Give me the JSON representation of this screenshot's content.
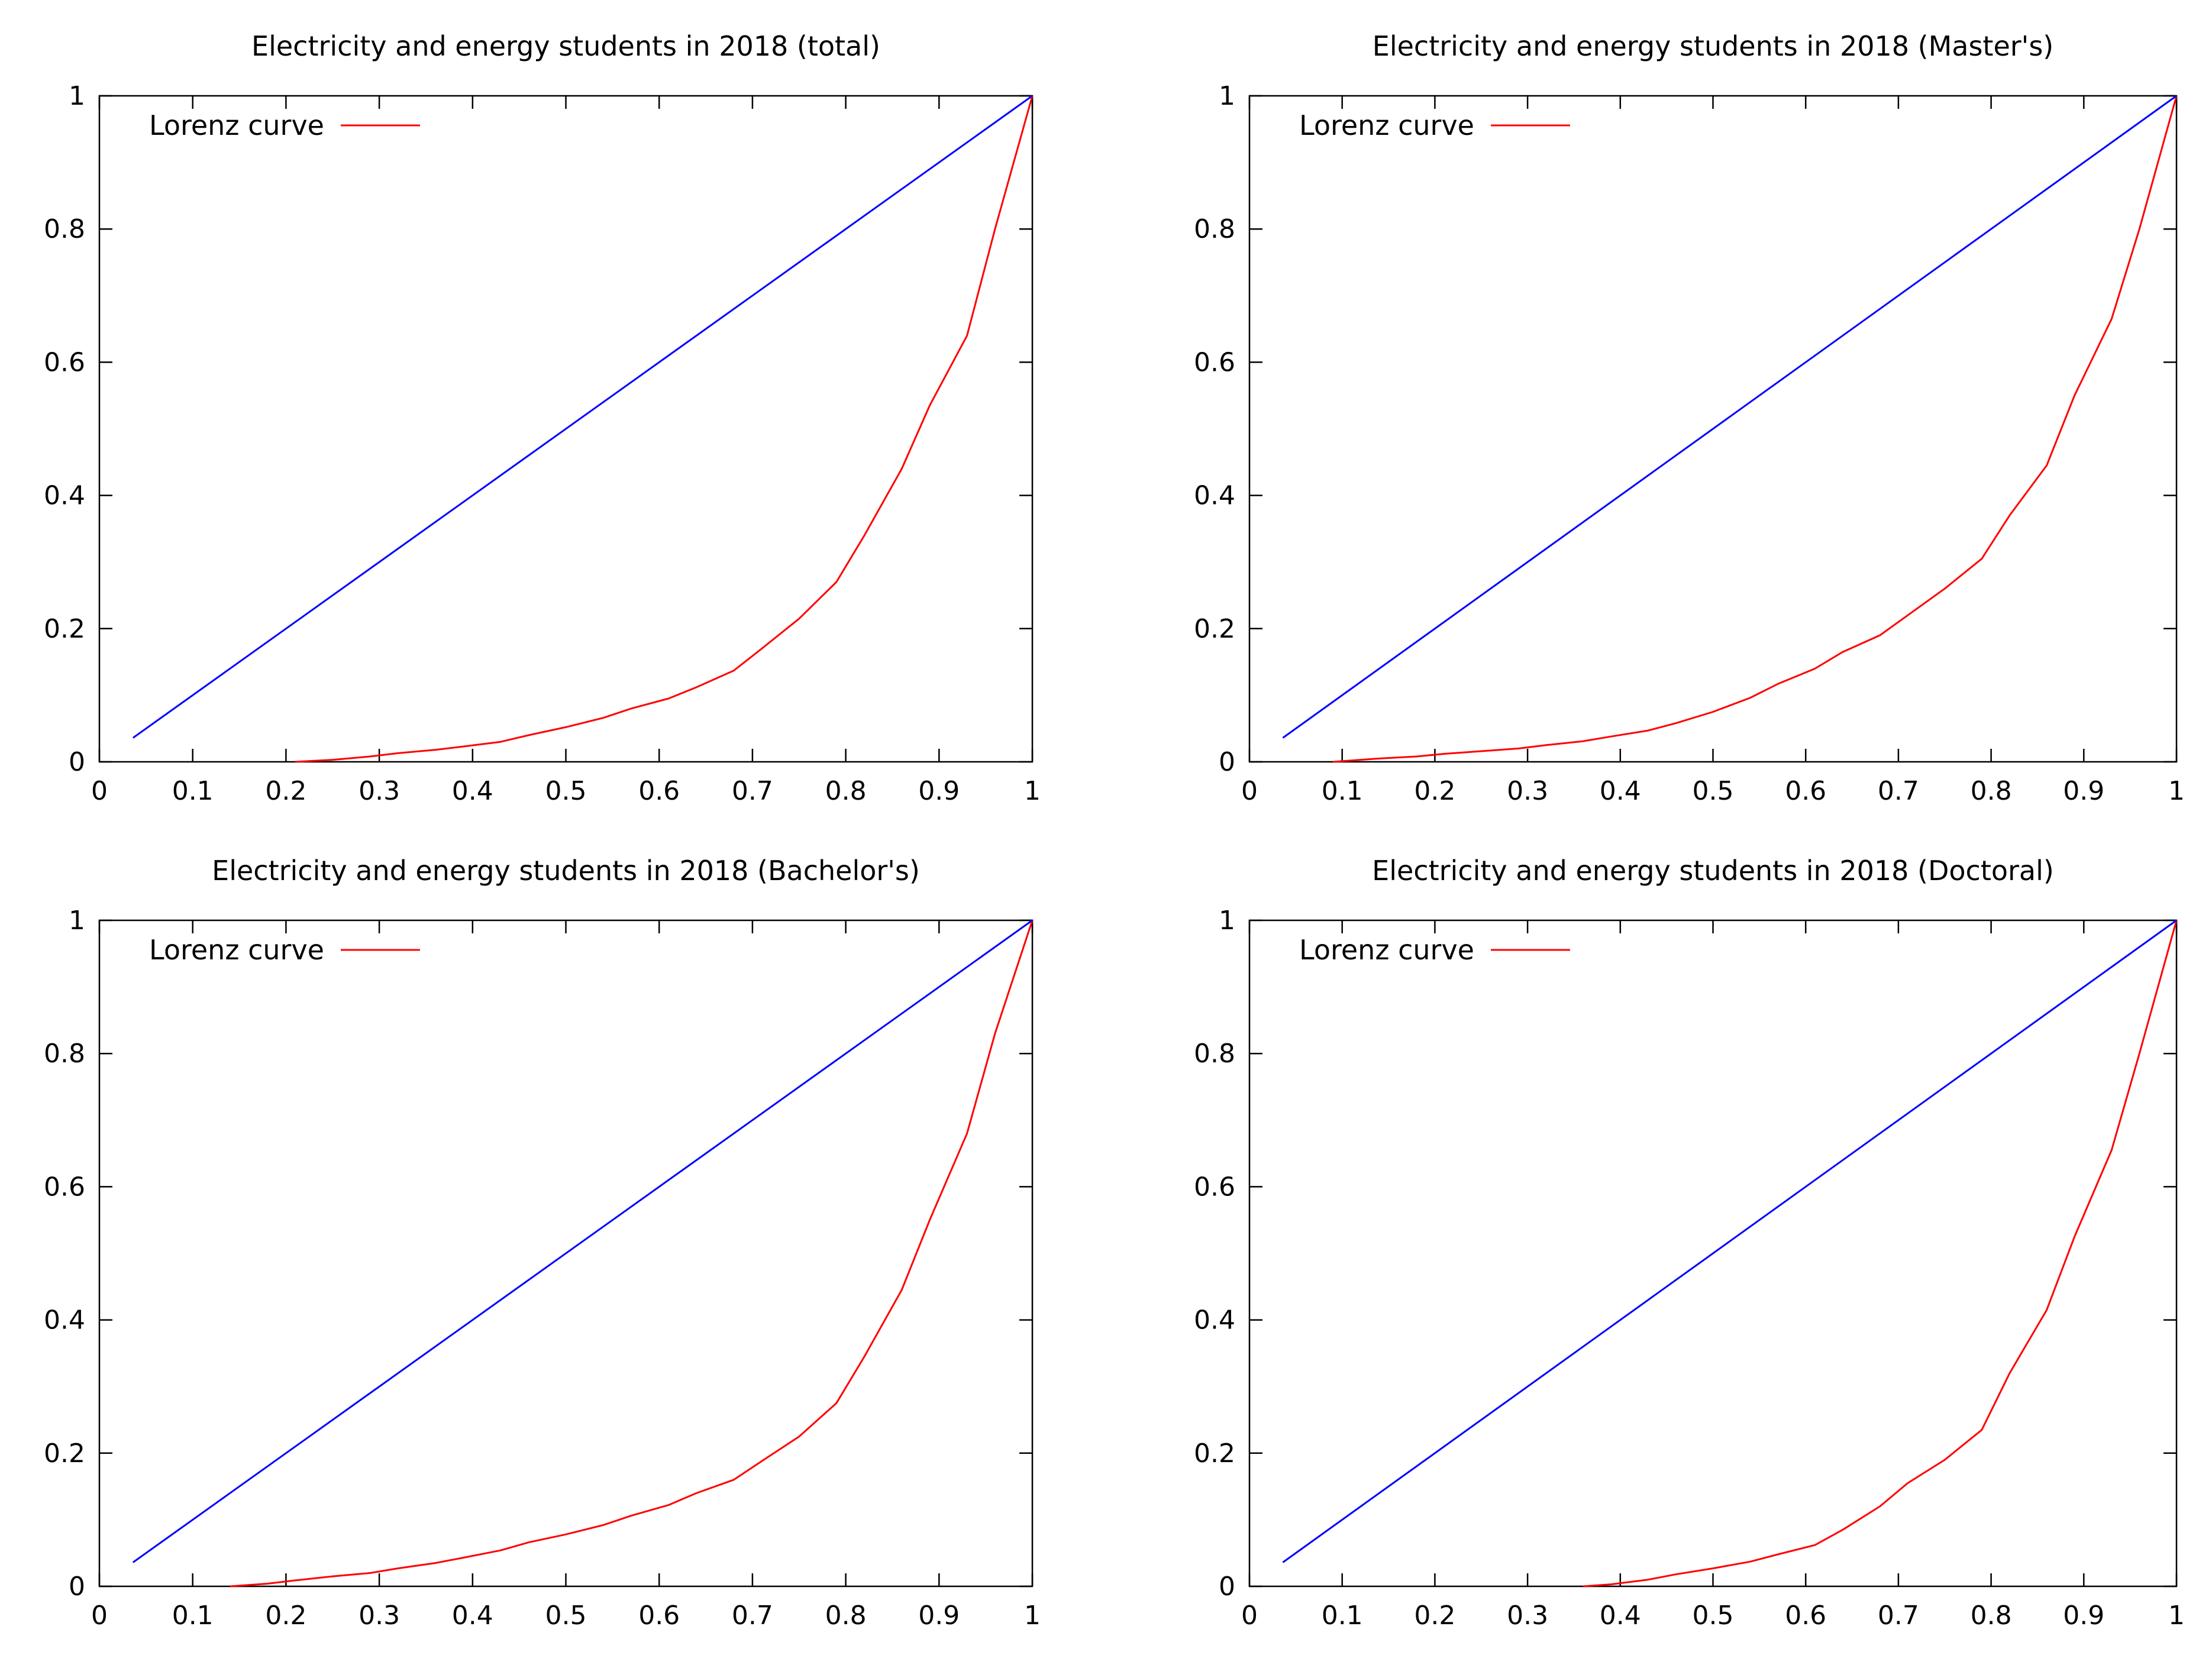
{
  "colors": {
    "lorenz": "#ff0000",
    "equality": "#0000ff",
    "axis": "#000000",
    "background": "#ffffff"
  },
  "chart_data": [
    {
      "type": "line",
      "title": "Electricity and energy students in 2018 (total)",
      "xlabel": "",
      "ylabel": "",
      "xlim": [
        0,
        1
      ],
      "ylim": [
        0,
        1
      ],
      "xticks": [
        "0",
        "0.1",
        "0.2",
        "0.3",
        "0.4",
        "0.5",
        "0.6",
        "0.7",
        "0.8",
        "0.9",
        "1"
      ],
      "yticks": [
        "0",
        "0.2",
        "0.4",
        "0.6",
        "0.8",
        "1"
      ],
      "grid": false,
      "legend_position": "top-left",
      "series": [
        {
          "name": "Lorenz curve",
          "color": "#ff0000",
          "x": [
            0.21,
            0.25,
            0.29,
            0.32,
            0.36,
            0.39,
            0.43,
            0.46,
            0.5,
            0.54,
            0.57,
            0.61,
            0.64,
            0.68,
            0.71,
            0.75,
            0.79,
            0.82,
            0.86,
            0.89,
            0.93,
            0.96,
            1.0
          ],
          "y": [
            0.0,
            0.003,
            0.008,
            0.013,
            0.018,
            0.023,
            0.03,
            0.04,
            0.052,
            0.066,
            0.08,
            0.095,
            0.112,
            0.137,
            0.17,
            0.215,
            0.27,
            0.34,
            0.44,
            0.535,
            0.64,
            0.8,
            1.0
          ]
        },
        {
          "name": "",
          "color": "#0000ff",
          "x": [
            0.036,
            1.0
          ],
          "y": [
            0.036,
            1.0
          ]
        }
      ]
    },
    {
      "type": "line",
      "title": "Electricity and energy students in 2018 (Master's)",
      "xlabel": "",
      "ylabel": "",
      "xlim": [
        0,
        1
      ],
      "ylim": [
        0,
        1
      ],
      "xticks": [
        "0",
        "0.1",
        "0.2",
        "0.3",
        "0.4",
        "0.5",
        "0.6",
        "0.7",
        "0.8",
        "0.9",
        "1"
      ],
      "yticks": [
        "0",
        "0.2",
        "0.4",
        "0.6",
        "0.8",
        "1"
      ],
      "grid": false,
      "legend_position": "top-left",
      "series": [
        {
          "name": "Lorenz curve",
          "color": "#ff0000",
          "x": [
            0.09,
            0.11,
            0.14,
            0.18,
            0.21,
            0.25,
            0.29,
            0.32,
            0.36,
            0.39,
            0.43,
            0.46,
            0.5,
            0.54,
            0.57,
            0.61,
            0.64,
            0.68,
            0.71,
            0.75,
            0.79,
            0.82,
            0.86,
            0.89,
            0.93,
            0.96,
            1.0
          ],
          "y": [
            0.0,
            0.002,
            0.005,
            0.008,
            0.012,
            0.016,
            0.02,
            0.025,
            0.031,
            0.038,
            0.047,
            0.058,
            0.075,
            0.096,
            0.117,
            0.14,
            0.165,
            0.19,
            0.22,
            0.26,
            0.305,
            0.37,
            0.445,
            0.55,
            0.665,
            0.8,
            1.0
          ]
        },
        {
          "name": "",
          "color": "#0000ff",
          "x": [
            0.036,
            1.0
          ],
          "y": [
            0.036,
            1.0
          ]
        }
      ]
    },
    {
      "type": "line",
      "title": "Electricity and energy students in 2018 (Bachelor's)",
      "xlabel": "",
      "ylabel": "",
      "xlim": [
        0,
        1
      ],
      "ylim": [
        0,
        1
      ],
      "xticks": [
        "0",
        "0.1",
        "0.2",
        "0.3",
        "0.4",
        "0.5",
        "0.6",
        "0.7",
        "0.8",
        "0.9",
        "1"
      ],
      "yticks": [
        "0",
        "0.2",
        "0.4",
        "0.6",
        "0.8",
        "1"
      ],
      "grid": false,
      "legend_position": "top-left",
      "series": [
        {
          "name": "Lorenz curve",
          "color": "#ff0000",
          "x": [
            0.14,
            0.18,
            0.21,
            0.25,
            0.29,
            0.32,
            0.36,
            0.39,
            0.43,
            0.46,
            0.5,
            0.54,
            0.57,
            0.61,
            0.64,
            0.68,
            0.71,
            0.75,
            0.79,
            0.82,
            0.86,
            0.89,
            0.93,
            0.96,
            1.0
          ],
          "y": [
            0.0,
            0.004,
            0.009,
            0.015,
            0.02,
            0.027,
            0.035,
            0.043,
            0.054,
            0.066,
            0.078,
            0.092,
            0.106,
            0.122,
            0.14,
            0.16,
            0.188,
            0.225,
            0.275,
            0.345,
            0.445,
            0.55,
            0.68,
            0.83,
            1.0
          ]
        },
        {
          "name": "",
          "color": "#0000ff",
          "x": [
            0.036,
            1.0
          ],
          "y": [
            0.036,
            1.0
          ]
        }
      ]
    },
    {
      "type": "line",
      "title": "Electricity and energy students in 2018 (Doctoral)",
      "xlabel": "",
      "ylabel": "",
      "xlim": [
        0,
        1
      ],
      "ylim": [
        0,
        1
      ],
      "xticks": [
        "0",
        "0.1",
        "0.2",
        "0.3",
        "0.4",
        "0.5",
        "0.6",
        "0.7",
        "0.8",
        "0.9",
        "1"
      ],
      "yticks": [
        "0",
        "0.2",
        "0.4",
        "0.6",
        "0.8",
        "1"
      ],
      "grid": false,
      "legend_position": "top-left",
      "series": [
        {
          "name": "Lorenz curve",
          "color": "#ff0000",
          "x": [
            0.36,
            0.39,
            0.43,
            0.46,
            0.5,
            0.54,
            0.57,
            0.61,
            0.64,
            0.68,
            0.71,
            0.75,
            0.79,
            0.82,
            0.86,
            0.89,
            0.93,
            0.96,
            1.0
          ],
          "y": [
            0.0,
            0.003,
            0.01,
            0.018,
            0.027,
            0.037,
            0.048,
            0.062,
            0.085,
            0.12,
            0.155,
            0.19,
            0.235,
            0.32,
            0.415,
            0.525,
            0.655,
            0.8,
            1.0
          ]
        },
        {
          "name": "",
          "color": "#0000ff",
          "x": [
            0.036,
            1.0
          ],
          "y": [
            0.036,
            1.0
          ]
        }
      ]
    }
  ]
}
